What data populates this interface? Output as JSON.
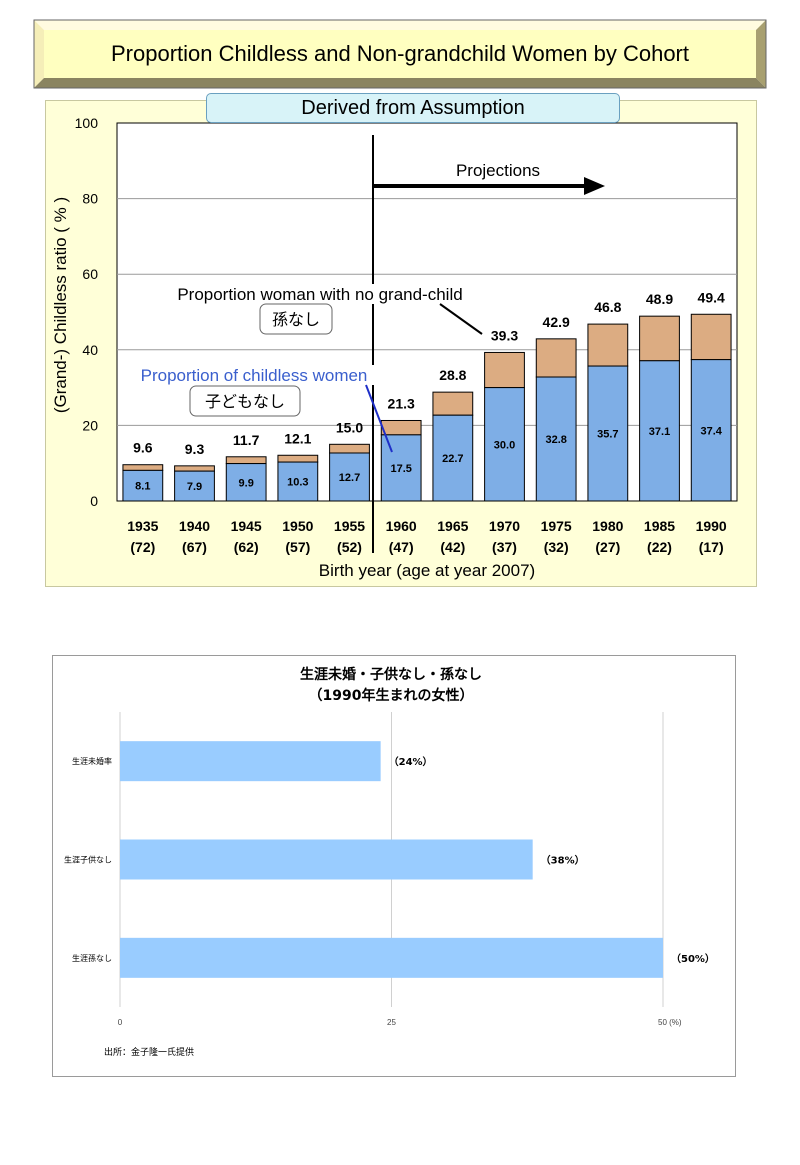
{
  "chart_data": [
    {
      "type": "bar",
      "title": "Proportion Childless and Non-grandchild Women by Cohort",
      "subtitle": "Derived from Assumption",
      "ylabel": "(Grand-) Childless ratio ( % )",
      "xlabel": "Birth year (age at year 2007)",
      "ylim": [
        0,
        100
      ],
      "yticks": [
        "0",
        "20",
        "40",
        "60",
        "80",
        "100"
      ],
      "categories": [
        "1935",
        "1940",
        "1945",
        "1950",
        "1955",
        "1960",
        "1965",
        "1970",
        "1975",
        "1980",
        "1985",
        "1990"
      ],
      "ages": [
        "(72)",
        "(67)",
        "(62)",
        "(57)",
        "(52)",
        "(47)",
        "(42)",
        "(37)",
        "(32)",
        "(27)",
        "(22)",
        "(17)"
      ],
      "series": [
        {
          "values": [
            8.1,
            7.9,
            9.9,
            10.3,
            12.7,
            17.5,
            22.7,
            30.0,
            32.8,
            35.7,
            37.1,
            37.4
          ]
        },
        {
          "values": [
            9.6,
            9.3,
            11.7,
            12.1,
            15.0,
            21.3,
            28.8,
            39.3,
            42.9,
            46.8,
            48.9,
            49.4
          ]
        }
      ],
      "inner_labels": [
        "8.1",
        "7.9",
        "9.9",
        "10.3",
        "12.7",
        "17.5",
        "22.7",
        "30.0",
        "32.8",
        "35.7",
        "37.1",
        "37.4"
      ],
      "top_labels": [
        "9.6",
        "9.3",
        "11.7",
        "12.1",
        "15.0",
        "21.3",
        "28.8",
        "39.3",
        "42.9",
        "46.8",
        "48.9",
        "49.4"
      ],
      "annotations": {
        "projections": "Projections",
        "grandchild_en": "Proportion woman with no grand-child",
        "grandchild_jp": "孫なし",
        "childless_en": "Proportion of childless women",
        "childless_jp": "子どもなし"
      },
      "colors": {
        "childless": "#7eaee6",
        "grandchild": "#dcac82",
        "childless_text": "#3a5fcd"
      },
      "grid": true
    },
    {
      "type": "bar",
      "orientation": "horizontal",
      "title": "生涯未婚・子供なし・孫なし",
      "subtitle": "（1990年生まれの女性）",
      "categories": [
        "生涯未婚率",
        "生涯子供なし",
        "生涯孫なし"
      ],
      "values": [
        24,
        38,
        50
      ],
      "value_labels": [
        "（24%）",
        "（38%）",
        "（50%）"
      ],
      "xlim": [
        0,
        50
      ],
      "xticks": [
        "0",
        "25",
        "50 (%)"
      ],
      "source": "出所：金子隆一氏提供",
      "colors": {
        "bar": "#99ccff"
      },
      "grid": true
    }
  ]
}
